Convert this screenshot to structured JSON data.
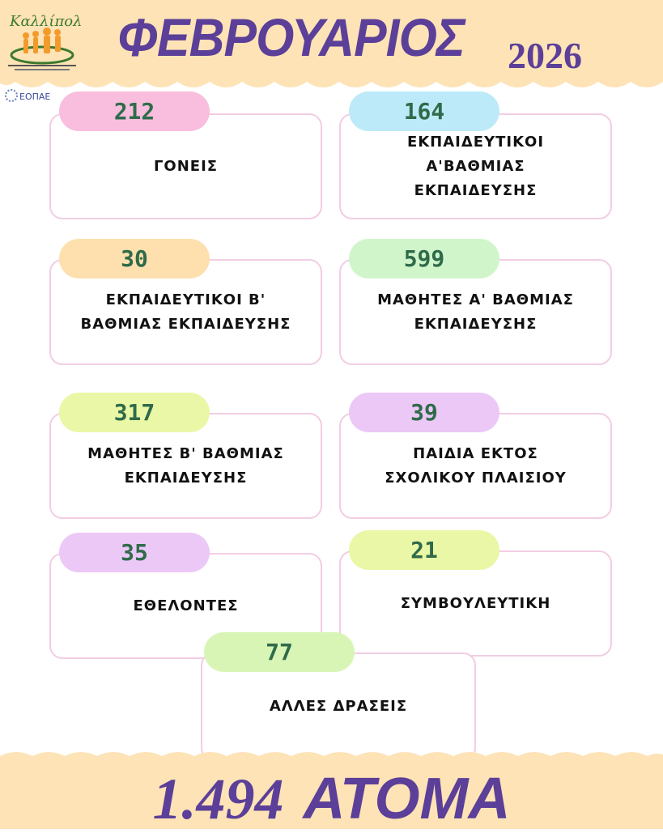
{
  "header": {
    "month": "ΦΕΒΡΟΥΑΡΙΟΣ",
    "year": "2026",
    "logo_text": "Καλλίπολις",
    "partner_logo_text": "ΕΟΠΑΕ"
  },
  "colors": {
    "title": "#5b3f98",
    "number": "#2f6b4a",
    "band": "#fde3b6",
    "card_border": "#f2cde4"
  },
  "stats": [
    {
      "value": "212",
      "label": "ΓΟΝΕΙΣ",
      "pill_color": "#f9bddd"
    },
    {
      "value": "164",
      "label": "ΕΚΠΑΙΔΕΥΤΙΚΟΙ\nΑ'ΒΑΘΜΙΑΣ\nΕΚΠΑΙΔΕΥΣΗΣ",
      "pill_color": "#bdeaf8"
    },
    {
      "value": "30",
      "label": "ΕΚΠΑΙΔΕΥΤΙΚΟΙ Β'\nΒΑΘΜΙΑΣ ΕΚΠΑΙΔΕΥΣΗΣ",
      "pill_color": "#fde0ae"
    },
    {
      "value": "599",
      "label": "ΜΑΘΗΤΕΣ Α' ΒΑΘΜΙΑΣ\nΕΚΠΑΙΔΕΥΣΗΣ",
      "pill_color": "#d0f5ca"
    },
    {
      "value": "317",
      "label": "ΜΑΘΗΤΕΣ Β' ΒΑΘΜΙΑΣ\nΕΚΠΑΙΔΕΥΣΗΣ",
      "pill_color": "#eaf7a6"
    },
    {
      "value": "39",
      "label": "ΠΑΙΔΙΑ ΕΚΤΟΣ\nΣΧΟΛΙΚΟΥ ΠΛΑΙΣΙΟΥ",
      "pill_color": "#ecc8f7"
    },
    {
      "value": "35",
      "label": "ΕΘΕΛΟΝΤΕΣ",
      "pill_color": "#ecc8f7"
    },
    {
      "value": "21",
      "label": "ΣΥΜΒΟΥΛΕΥΤΙΚΗ",
      "pill_color": "#eaf7a6"
    },
    {
      "value": "77",
      "label": "ΑΛΛΕΣ ΔΡΑΣΕΙΣ",
      "pill_color": "#d8f5b6"
    }
  ],
  "footer": {
    "total": "1.494",
    "unit": "ΑΤΟΜΑ"
  }
}
